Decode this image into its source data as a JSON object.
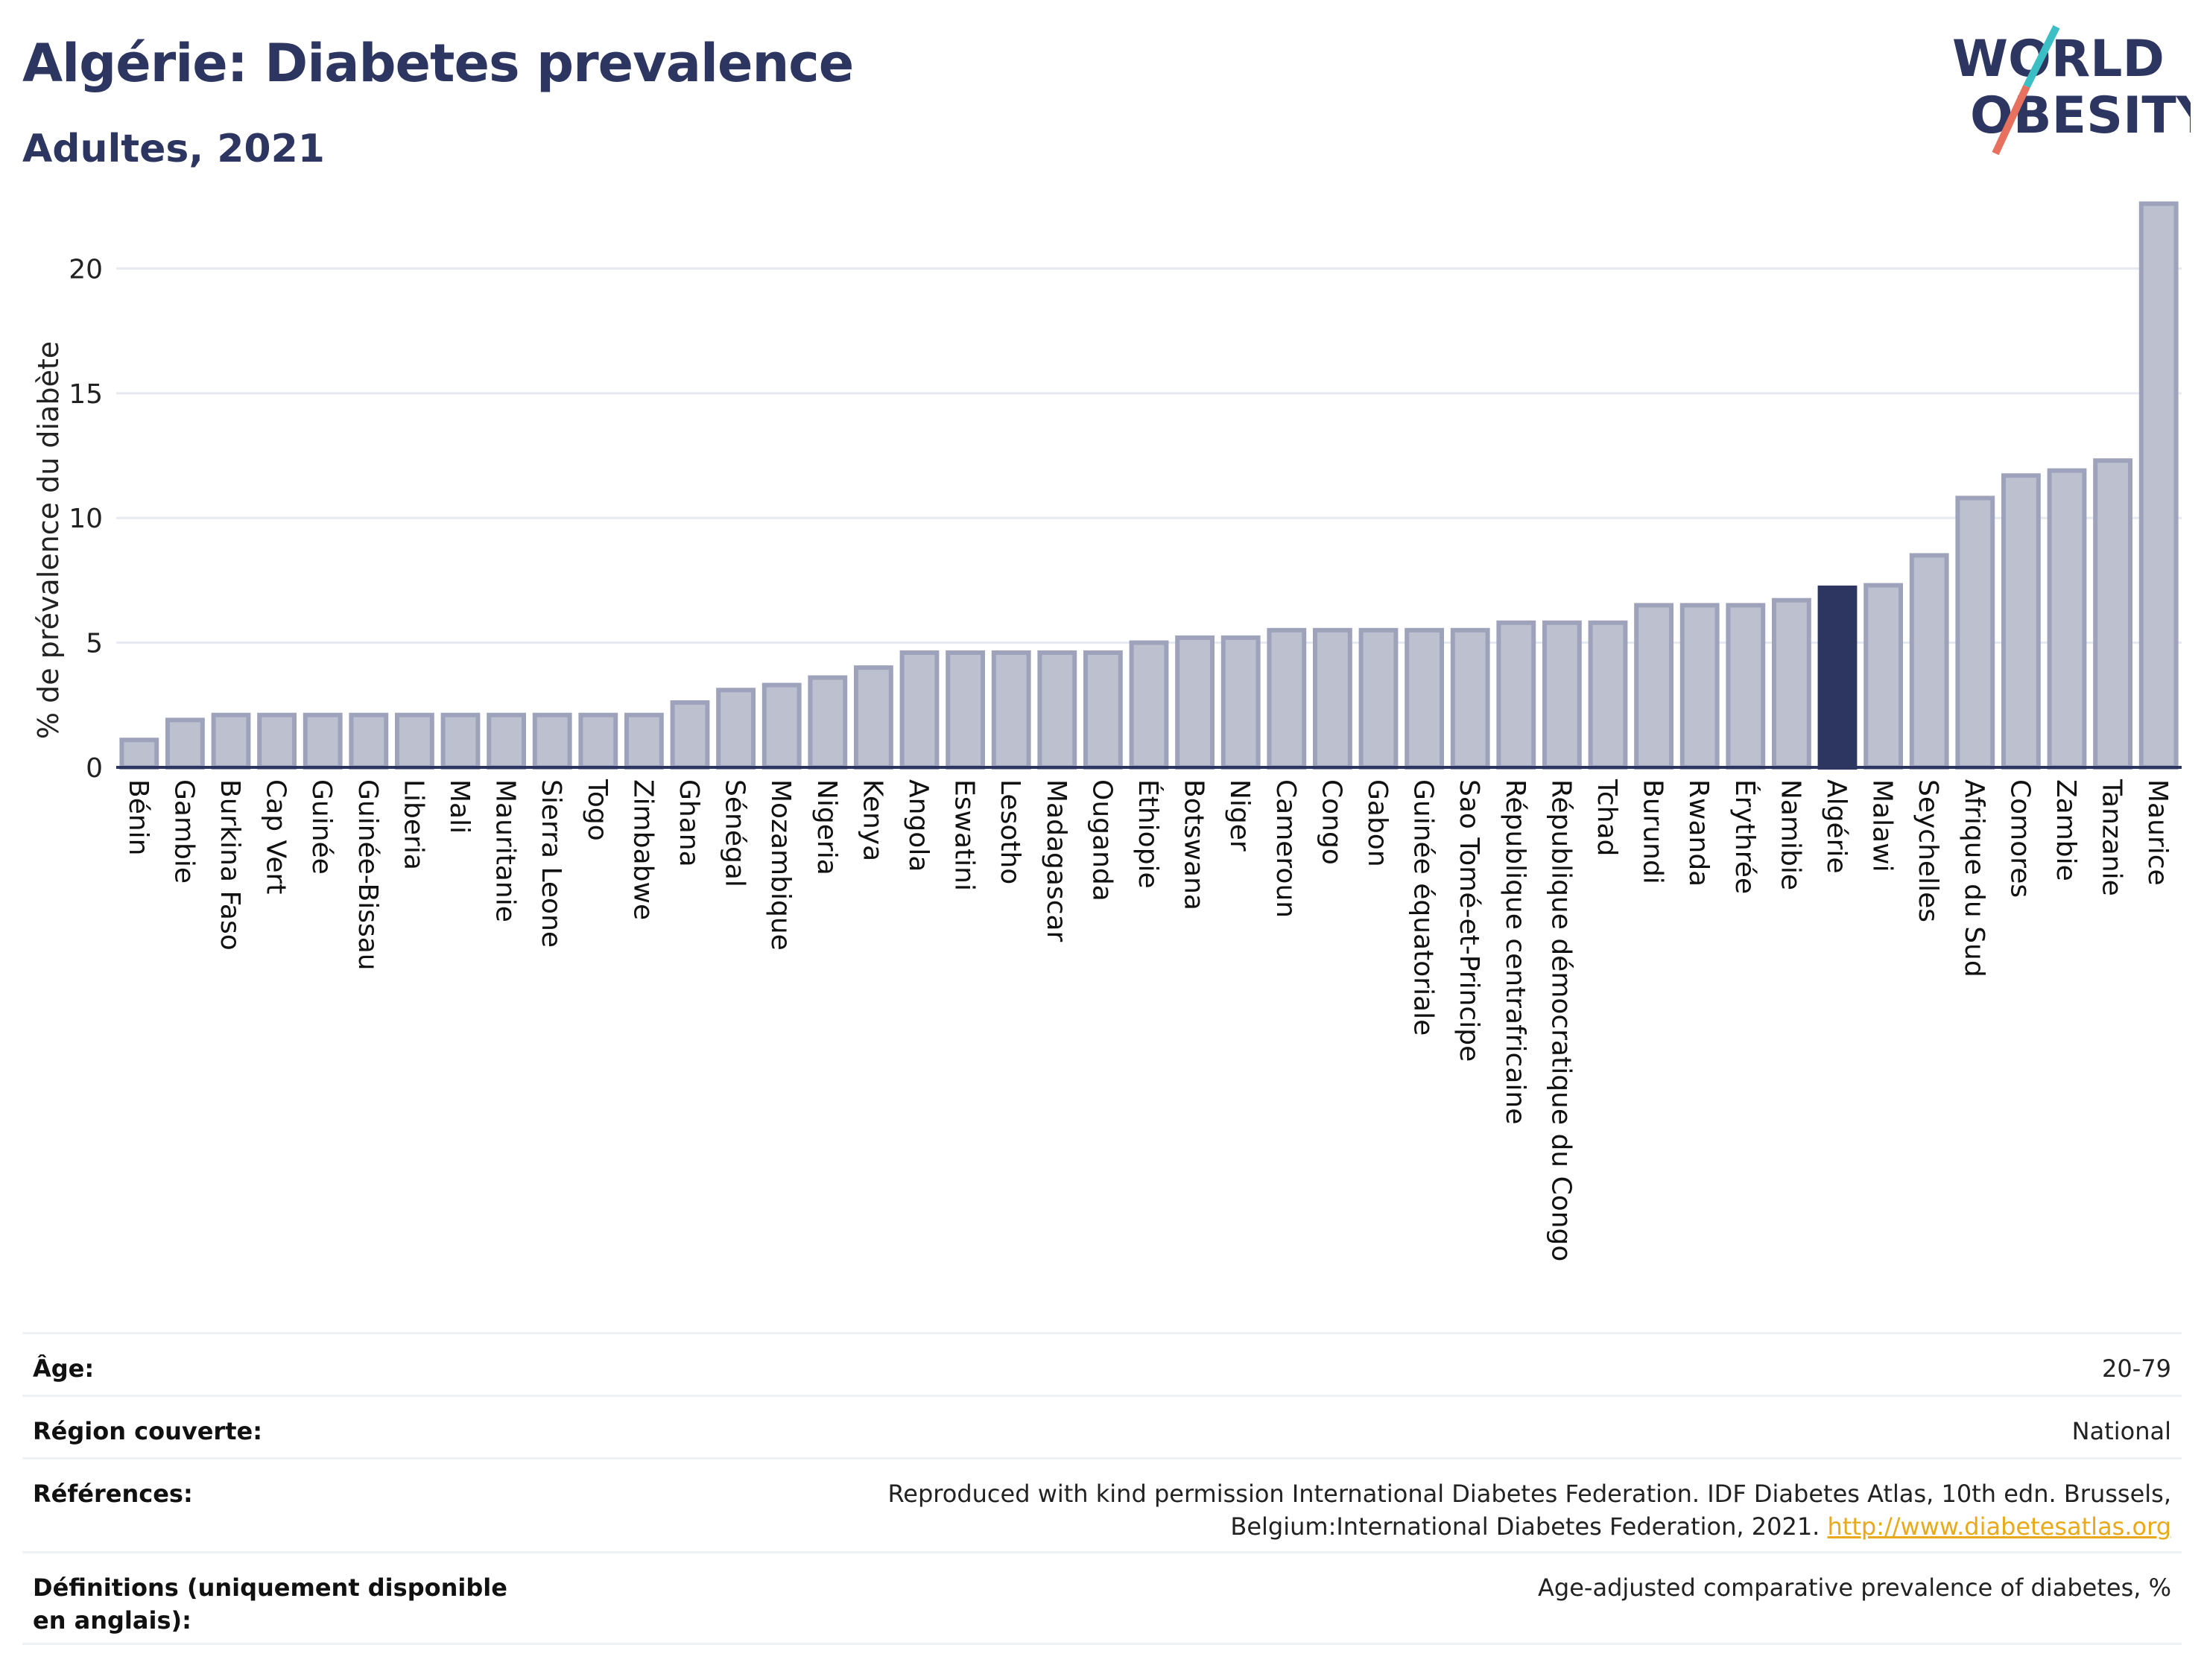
{
  "header": {
    "title": "Algérie: Diabetes prevalence",
    "subtitle": "Adultes, 2021"
  },
  "logo": {
    "line1": "WORLD",
    "line2": "OBESITY"
  },
  "colors": {
    "bar": "#bcc0cf",
    "bar_stroke": "#9ea3bb",
    "highlight": "#2d3561",
    "text": "#2d3561",
    "grid": "#e6e9f0",
    "logo_teal": "#3bbfc4",
    "logo_coral": "#e8705e"
  },
  "chart_data": {
    "type": "bar",
    "ylabel": "% de prévalence du diabète",
    "ylim": [
      0,
      23
    ],
    "yticks": [
      0,
      5,
      10,
      15,
      20
    ],
    "grid": true,
    "highlight": "Algérie",
    "categories": [
      "Bénin",
      "Gambie",
      "Burkina Faso",
      "Cap Vert",
      "Guinée",
      "Guinée-Bissau",
      "Liberia",
      "Mali",
      "Mauritanie",
      "Sierra Leone",
      "Togo",
      "Zimbabwe",
      "Ghana",
      "Sénégal",
      "Mozambique",
      "Nigeria",
      "Kenya",
      "Angola",
      "Eswatini",
      "Lesotho",
      "Madagascar",
      "Ouganda",
      "Éthiopie",
      "Botswana",
      "Niger",
      "Cameroun",
      "Congo",
      "Gabon",
      "Guinée équatoriale",
      "Sao Tomé-et-Principe",
      "République centrafricaine",
      "République démocratique du Congo",
      "Tchad",
      "Burundi",
      "Rwanda",
      "Érythrée",
      "Namibie",
      "Algérie",
      "Malawi",
      "Seychelles",
      "Afrique du Sud",
      "Comores",
      "Zambie",
      "Tanzanie",
      "Maurice"
    ],
    "values": [
      1.1,
      1.9,
      2.1,
      2.1,
      2.1,
      2.1,
      2.1,
      2.1,
      2.1,
      2.1,
      2.1,
      2.1,
      2.6,
      3.1,
      3.3,
      3.6,
      4.0,
      4.6,
      4.6,
      4.6,
      4.6,
      4.6,
      5.0,
      5.2,
      5.2,
      5.5,
      5.5,
      5.5,
      5.5,
      5.5,
      5.8,
      5.8,
      5.8,
      6.5,
      6.5,
      6.5,
      6.7,
      7.2,
      7.3,
      8.5,
      10.8,
      11.7,
      11.9,
      12.3,
      22.6
    ]
  },
  "meta": [
    {
      "label": "Âge:",
      "value": "20-79",
      "link": ""
    },
    {
      "label": "Région couverte:",
      "value": "National",
      "link": ""
    },
    {
      "label": "Références:",
      "value": "Reproduced with kind permission International Diabetes Federation.  IDF Diabetes Atlas, 10th edn. Brussels, Belgium:International Diabetes Federation, 2021. ",
      "link": "http://www.diabetesatlas.org"
    },
    {
      "label": "Définitions (uniquement disponible en anglais):",
      "value": "Age-adjusted comparative prevalence of diabetes, %",
      "link": ""
    }
  ]
}
